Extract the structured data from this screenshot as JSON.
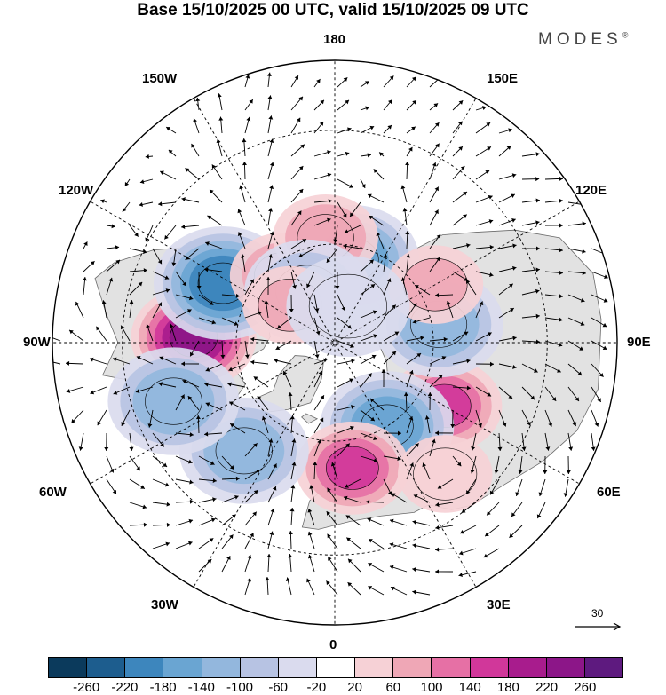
{
  "title": "Base 15/10/2025 00 UTC, valid 15/10/2025 09 UTC",
  "brand": "MODES",
  "brand_mark": "®",
  "longitude_labels": {
    "top": "180",
    "bottom": "0",
    "left": "90W",
    "right": "90E",
    "upper_left": "150W",
    "upper_left_mid": "120W",
    "upper_right": "150E",
    "upper_right_mid": "120E",
    "lower_left": "30W",
    "lower_left_mid": "60W",
    "lower_right": "30E",
    "lower_right_mid": "60E"
  },
  "vector_scale": "30",
  "colorbar": {
    "ticks": [
      "-260",
      "-220",
      "-180",
      "-140",
      "-100",
      "-60",
      "-20",
      "20",
      "60",
      "100",
      "140",
      "180",
      "220",
      "260"
    ],
    "colors": [
      "#0b3a5c",
      "#1d5d8e",
      "#3d86bd",
      "#6aa5d2",
      "#93b7dd",
      "#b7c3e3",
      "#dadbee",
      "#ffffff",
      "#f6d1d6",
      "#efa7b6",
      "#e670a5",
      "#d1379a",
      "#a81c8d",
      "#8c1688",
      "#5e1a7f"
    ]
  },
  "anomaly_centers": [
    {
      "lon": -92,
      "lat": 48,
      "value": 230
    },
    {
      "lon": -118,
      "lat": 52,
      "value": -200
    },
    {
      "lon": -142,
      "lat": 64,
      "value": 100
    },
    {
      "lon": 168,
      "lat": 64,
      "value": -140
    },
    {
      "lon": -175,
      "lat": 58,
      "value": 100
    },
    {
      "lon": -152,
      "lat": 72,
      "value": -60
    },
    {
      "lon": 60,
      "lat": 52,
      "value": 170
    },
    {
      "lon": 32,
      "lat": 60,
      "value": -150
    },
    {
      "lon": 8,
      "lat": 52,
      "value": 150
    },
    {
      "lon": -40,
      "lat": 48,
      "value": -100
    },
    {
      "lon": -70,
      "lat": 40,
      "value": -120
    },
    {
      "lon": 100,
      "lat": 58,
      "value": -100
    },
    {
      "lon": 120,
      "lat": 55,
      "value": 80
    },
    {
      "lon": -130,
      "lat": 72,
      "value": 70
    },
    {
      "lon": 160,
      "lat": 78,
      "value": -30
    },
    {
      "lon": 40,
      "lat": 40,
      "value": 60
    }
  ]
}
